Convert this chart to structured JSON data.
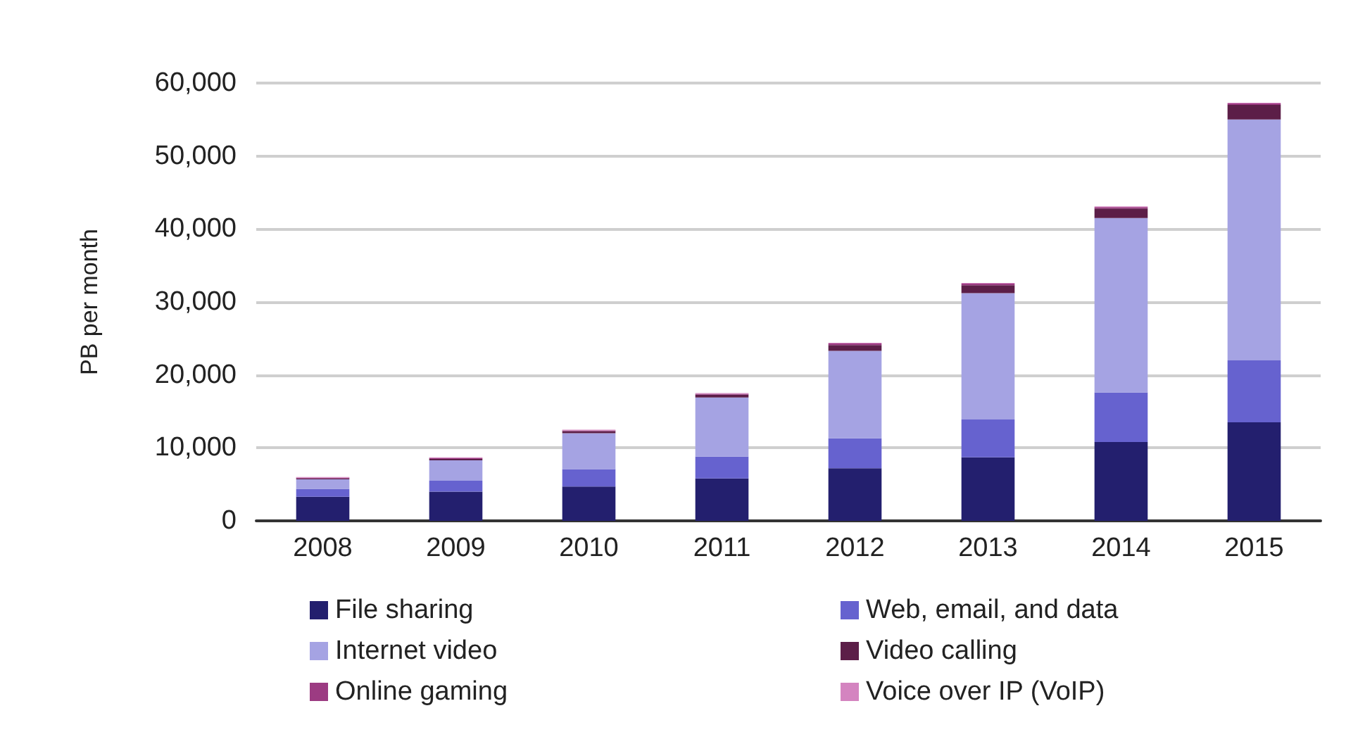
{
  "chart_data": {
    "type": "bar",
    "stacked": true,
    "ylabel": "PB per month",
    "categories": [
      "2008",
      "2009",
      "2010",
      "2011",
      "2012",
      "2013",
      "2014",
      "2015"
    ],
    "series": [
      {
        "name": "File sharing",
        "color": "#231f6e",
        "values": [
          3300,
          4000,
          4700,
          5800,
          7200,
          8700,
          10800,
          13500
        ]
      },
      {
        "name": "Web, email, and data",
        "color": "#6662cf",
        "values": [
          1100,
          1500,
          2400,
          3000,
          4100,
          5200,
          6800,
          8500
        ]
      },
      {
        "name": "Internet video",
        "color": "#a5a3e3",
        "values": [
          1300,
          2800,
          4900,
          8100,
          12000,
          17300,
          23900,
          33000
        ]
      },
      {
        "name": "Video calling",
        "color": "#5c1e48",
        "values": [
          100,
          200,
          300,
          400,
          800,
          1100,
          1300,
          2000
        ]
      },
      {
        "name": "Online gaming",
        "color": "#9c3b82",
        "values": [
          100,
          100,
          100,
          100,
          200,
          200,
          200,
          200
        ]
      },
      {
        "name": "Voice over IP (VoIP)",
        "color": "#d484c0",
        "values": [
          100,
          100,
          100,
          100,
          100,
          100,
          100,
          100
        ]
      }
    ],
    "ylim": [
      0,
      60000
    ],
    "yticks": [
      0,
      {
        "value": 10000,
        "label": "10,000"
      },
      {
        "value": 20000,
        "label": "20,000"
      },
      {
        "value": 30000,
        "label": "30,000"
      },
      {
        "value": 40000,
        "label": "40,000"
      },
      {
        "value": 50000,
        "label": "50,000"
      },
      {
        "value": 60000,
        "label": "60,000"
      }
    ],
    "grid": "y",
    "legend": "bottom"
  }
}
